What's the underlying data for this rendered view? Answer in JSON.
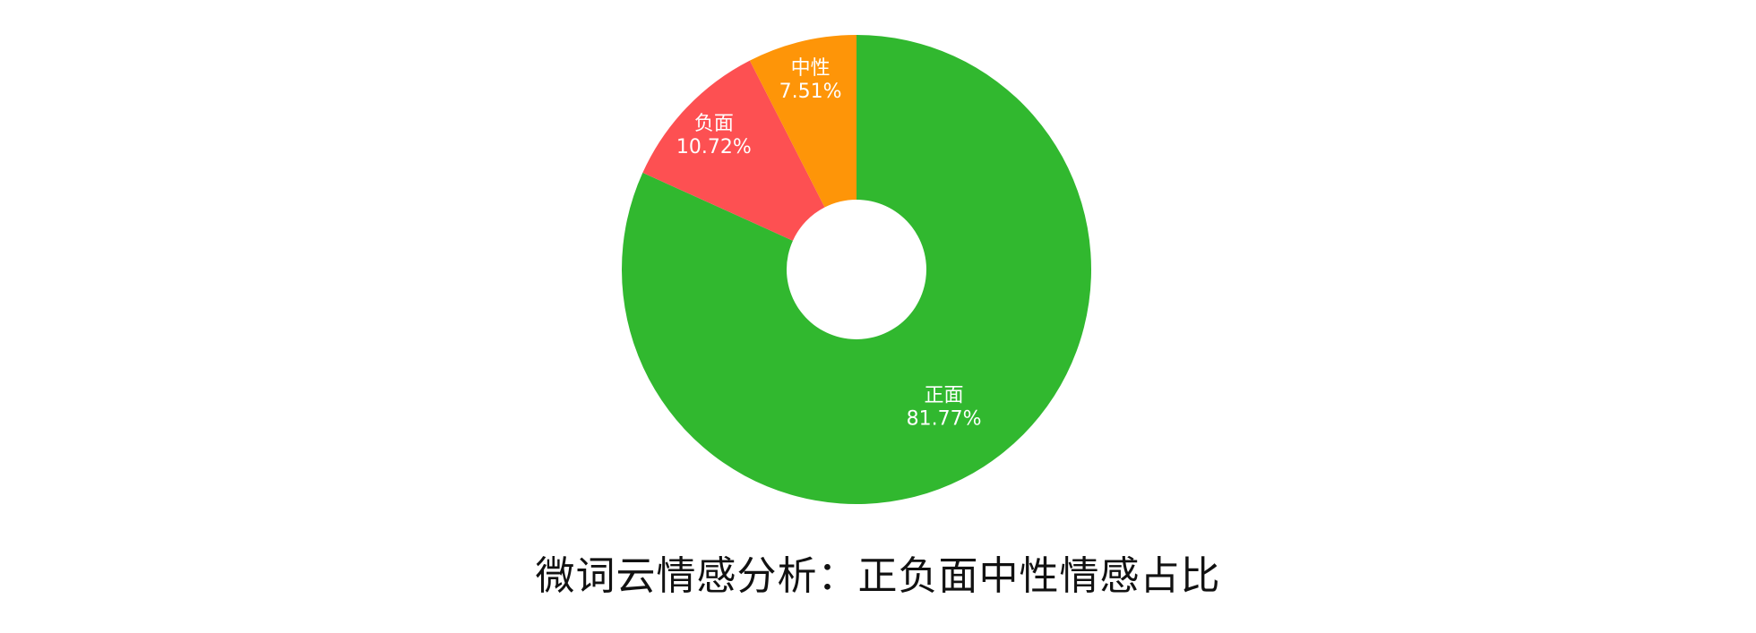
{
  "chart_data": {
    "type": "pie",
    "donut": true,
    "title": "微词云情感分析：正负面中性情感占比",
    "slices": [
      {
        "label": "正面",
        "value": 81.77,
        "value_label": "81.77%",
        "color": "#31b82f"
      },
      {
        "label": "负面",
        "value": 10.72,
        "value_label": "10.72%",
        "color": "#fd5052"
      },
      {
        "label": "中性",
        "value": 7.51,
        "value_label": "7.51%",
        "color": "#fe9508"
      }
    ],
    "legend": "none"
  }
}
